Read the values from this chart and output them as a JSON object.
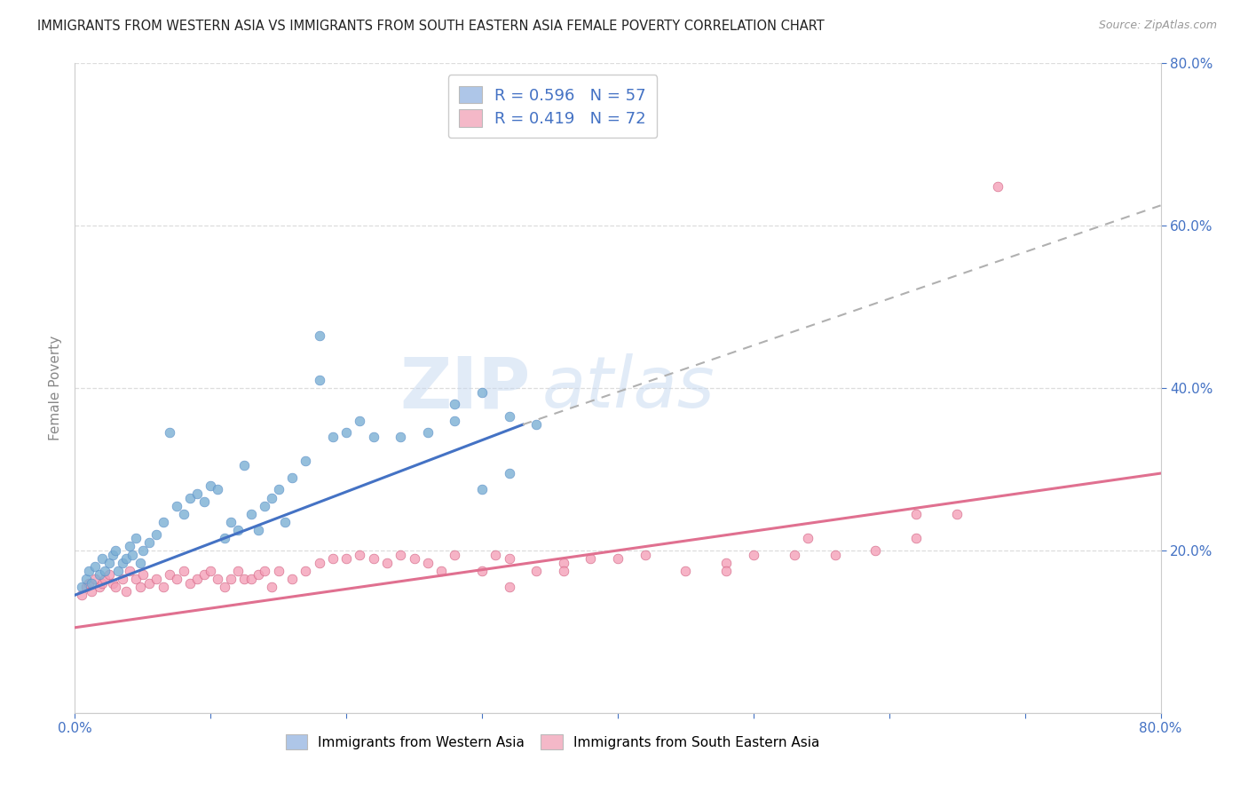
{
  "title": "IMMIGRANTS FROM WESTERN ASIA VS IMMIGRANTS FROM SOUTH EASTERN ASIA FEMALE POVERTY CORRELATION CHART",
  "source": "Source: ZipAtlas.com",
  "ylabel": "Female Poverty",
  "xlim": [
    0.0,
    0.8
  ],
  "ylim": [
    0.0,
    0.8
  ],
  "xticks_major": [
    0.0,
    0.1,
    0.2,
    0.3,
    0.4,
    0.5,
    0.6,
    0.7,
    0.8
  ],
  "xtick_labels_visible": [
    0.0,
    0.8
  ],
  "yticks_right": [
    0.2,
    0.4,
    0.6,
    0.8
  ],
  "grid_yticks": [
    0.2,
    0.4,
    0.6,
    0.8
  ],
  "watermark_zip": "ZIP",
  "watermark_atlas": "atlas",
  "legend_entries": [
    {
      "label_r": "R = 0.596",
      "label_n": "N = 57",
      "color": "#aec6e8"
    },
    {
      "label_r": "R = 0.419",
      "label_n": "N = 72",
      "color": "#f4b8c8"
    }
  ],
  "series1_color": "#7bafd4",
  "series1_edge": "#5a8fc8",
  "series2_color": "#f4a0b8",
  "series2_edge": "#d06080",
  "line1_color": "#4472c4",
  "line2_color": "#e07090",
  "dashed_line_color": "#b0b0b0",
  "line1_x0": 0.0,
  "line1_y0": 0.145,
  "line1_x1": 0.33,
  "line1_y1": 0.355,
  "line1_dash_x0": 0.33,
  "line1_dash_y0": 0.355,
  "line1_dash_x1": 0.8,
  "line1_dash_y1": 0.625,
  "line2_x0": 0.0,
  "line2_y0": 0.105,
  "line2_x1": 0.8,
  "line2_y1": 0.295,
  "background_color": "#ffffff",
  "grid_color": "#dddddd",
  "title_color": "#222222",
  "axis_label_color": "#888888",
  "right_tick_color": "#4472c4",
  "bottom_tick_color": "#4472c4",
  "bottom_legend": [
    {
      "label": "Immigrants from Western Asia",
      "color": "#aec6e8"
    },
    {
      "label": "Immigrants from South Eastern Asia",
      "color": "#f4b8c8"
    }
  ],
  "scatter1_x": [
    0.005,
    0.008,
    0.01,
    0.012,
    0.015,
    0.018,
    0.02,
    0.022,
    0.025,
    0.028,
    0.03,
    0.032,
    0.035,
    0.038,
    0.04,
    0.042,
    0.045,
    0.048,
    0.05,
    0.055,
    0.06,
    0.065,
    0.07,
    0.075,
    0.08,
    0.085,
    0.09,
    0.095,
    0.1,
    0.105,
    0.11,
    0.115,
    0.12,
    0.125,
    0.13,
    0.135,
    0.14,
    0.145,
    0.15,
    0.155,
    0.16,
    0.17,
    0.18,
    0.19,
    0.2,
    0.21,
    0.22,
    0.24,
    0.26,
    0.28,
    0.3,
    0.32,
    0.34,
    0.28,
    0.3,
    0.32,
    0.18
  ],
  "scatter1_y": [
    0.155,
    0.165,
    0.175,
    0.16,
    0.18,
    0.17,
    0.19,
    0.175,
    0.185,
    0.195,
    0.2,
    0.175,
    0.185,
    0.19,
    0.205,
    0.195,
    0.215,
    0.185,
    0.2,
    0.21,
    0.22,
    0.235,
    0.345,
    0.255,
    0.245,
    0.265,
    0.27,
    0.26,
    0.28,
    0.275,
    0.215,
    0.235,
    0.225,
    0.305,
    0.245,
    0.225,
    0.255,
    0.265,
    0.275,
    0.235,
    0.29,
    0.31,
    0.465,
    0.34,
    0.345,
    0.36,
    0.34,
    0.34,
    0.345,
    0.36,
    0.275,
    0.295,
    0.355,
    0.38,
    0.395,
    0.365,
    0.41
  ],
  "scatter2_x": [
    0.005,
    0.008,
    0.01,
    0.012,
    0.015,
    0.018,
    0.02,
    0.022,
    0.025,
    0.028,
    0.03,
    0.035,
    0.038,
    0.04,
    0.045,
    0.048,
    0.05,
    0.055,
    0.06,
    0.065,
    0.07,
    0.075,
    0.08,
    0.085,
    0.09,
    0.095,
    0.1,
    0.105,
    0.11,
    0.115,
    0.12,
    0.125,
    0.13,
    0.135,
    0.14,
    0.145,
    0.15,
    0.16,
    0.17,
    0.18,
    0.19,
    0.2,
    0.21,
    0.22,
    0.23,
    0.24,
    0.25,
    0.26,
    0.27,
    0.28,
    0.3,
    0.31,
    0.32,
    0.34,
    0.36,
    0.38,
    0.4,
    0.42,
    0.45,
    0.48,
    0.5,
    0.53,
    0.56,
    0.59,
    0.62,
    0.65,
    0.68,
    0.62,
    0.54,
    0.48,
    0.36,
    0.32
  ],
  "scatter2_y": [
    0.145,
    0.155,
    0.16,
    0.15,
    0.165,
    0.155,
    0.16,
    0.165,
    0.17,
    0.16,
    0.155,
    0.165,
    0.15,
    0.175,
    0.165,
    0.155,
    0.17,
    0.16,
    0.165,
    0.155,
    0.17,
    0.165,
    0.175,
    0.16,
    0.165,
    0.17,
    0.175,
    0.165,
    0.155,
    0.165,
    0.175,
    0.165,
    0.165,
    0.17,
    0.175,
    0.155,
    0.175,
    0.165,
    0.175,
    0.185,
    0.19,
    0.19,
    0.195,
    0.19,
    0.185,
    0.195,
    0.19,
    0.185,
    0.175,
    0.195,
    0.175,
    0.195,
    0.19,
    0.175,
    0.185,
    0.19,
    0.19,
    0.195,
    0.175,
    0.185,
    0.195,
    0.195,
    0.195,
    0.2,
    0.215,
    0.245,
    0.648,
    0.245,
    0.215,
    0.175,
    0.175,
    0.155
  ]
}
